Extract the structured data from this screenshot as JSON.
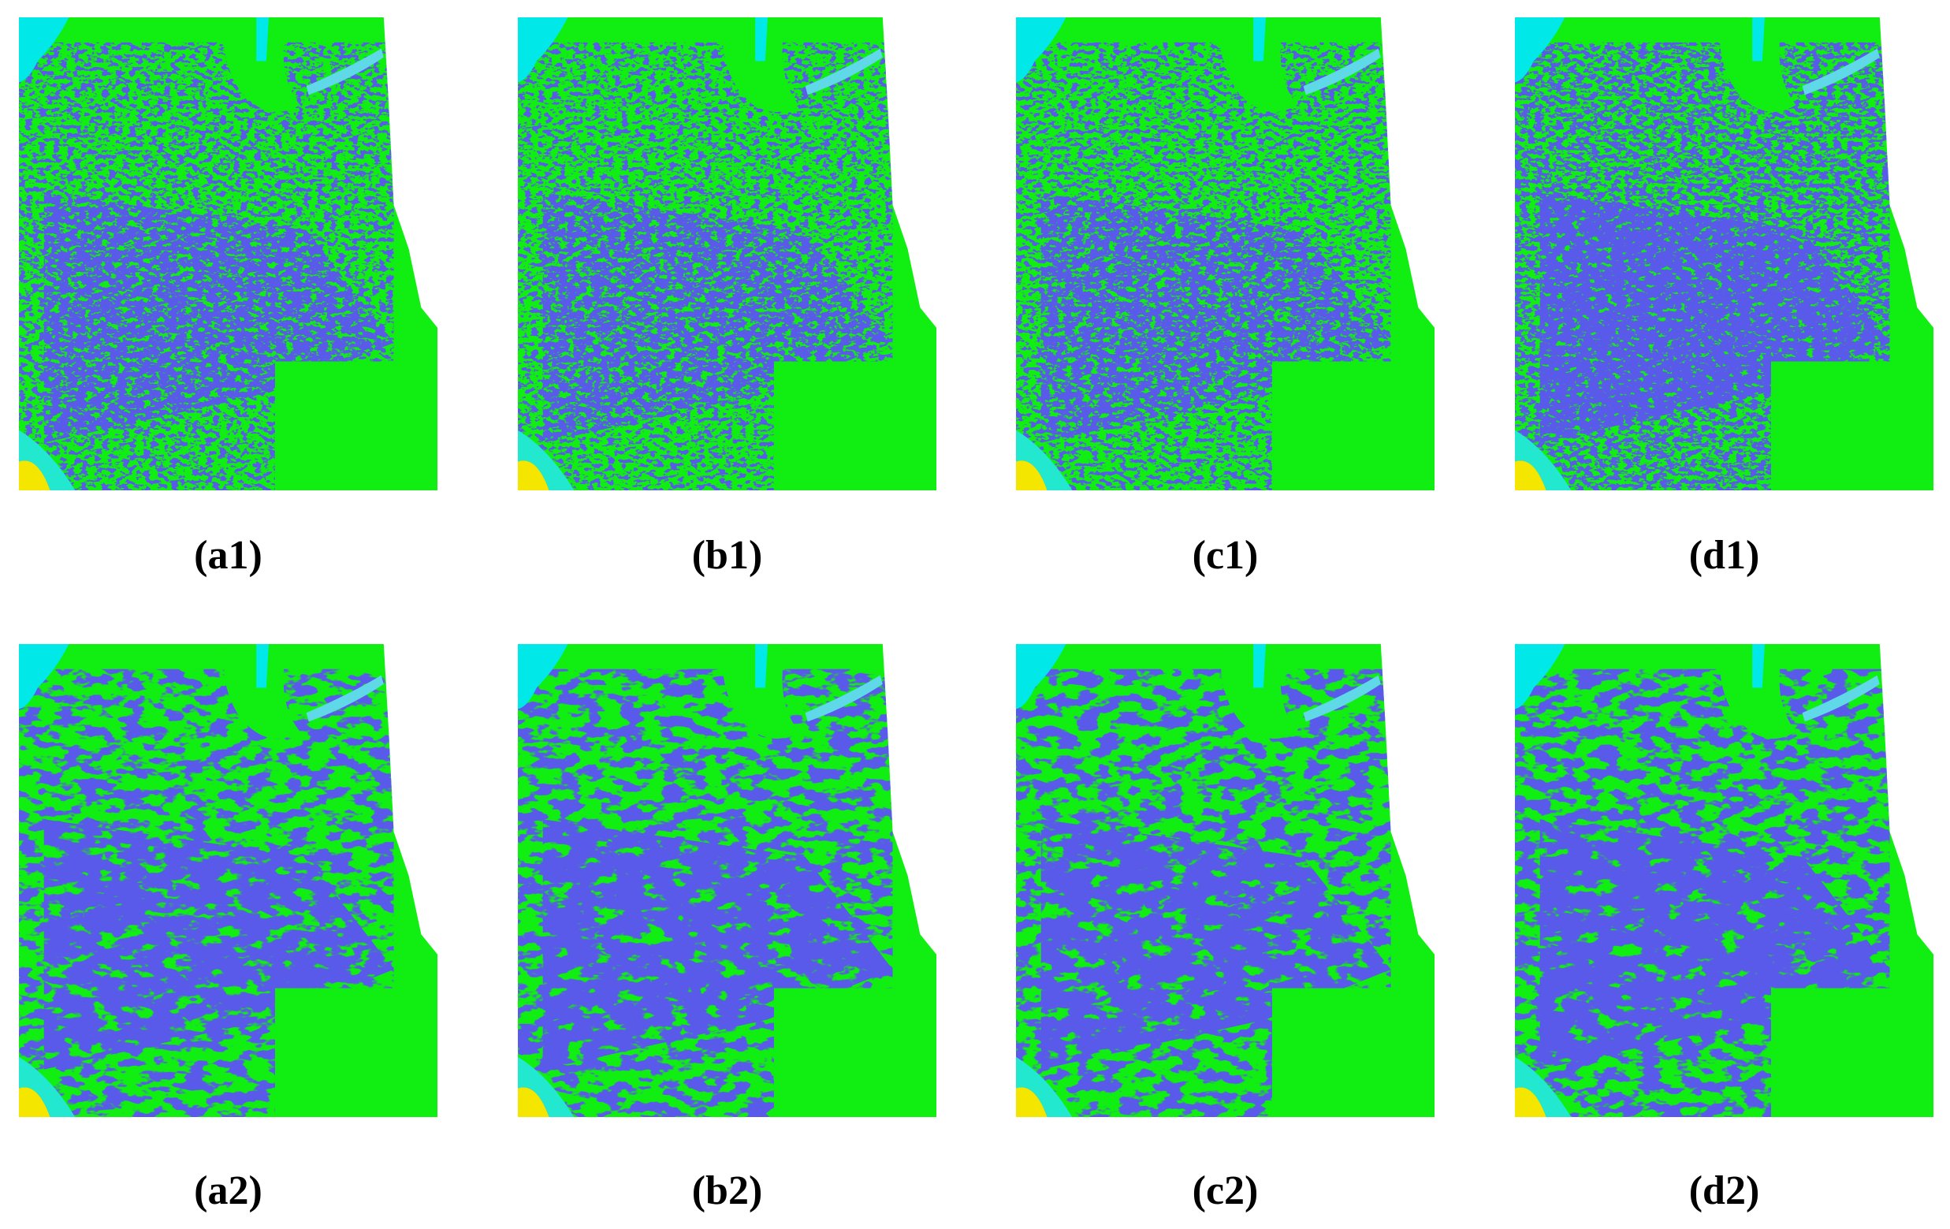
{
  "panels": [
    {
      "label": "(a1)"
    },
    {
      "label": "(b1)"
    },
    {
      "label": "(c1)"
    },
    {
      "label": "(d1)"
    },
    {
      "label": "(a2)"
    },
    {
      "label": "(b2)"
    },
    {
      "label": "(c2)"
    },
    {
      "label": "(d2)"
    }
  ]
}
